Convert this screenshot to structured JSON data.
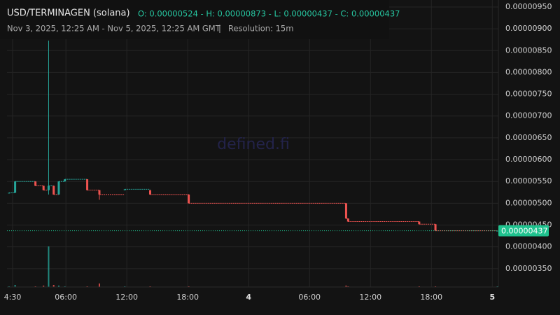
{
  "header": {
    "pair": "USD/TERMINAGEN (solana)",
    "ohlc": "O: 0.00000524 - H: 0.00000873 - L: 0.00000437 - C: 0.00000437",
    "range": "Nov 3, 2025, 12:25 AM - Nov 5, 2025, 12:25 AM GMT",
    "separator": "|",
    "resolution": "Resolution: 15m"
  },
  "watermark": "defined.fi",
  "chart_data": {
    "type": "candlestick",
    "up_color": "#26a69a",
    "down_color": "#ef5350",
    "grid": true,
    "x": [
      0.4,
      1.0,
      3.0,
      3.8,
      4.3,
      4.8,
      5.3,
      5.9,
      8.1,
      9.3,
      11.8,
      14.3,
      18.1,
      33.6,
      33.8,
      40.8,
      42.4,
      48.5
    ],
    "open": [
      5.24e-06,
      5.24e-06,
      5.5e-06,
      5.4e-06,
      5.3e-06,
      5.4e-06,
      5.2e-06,
      5.5e-06,
      5.55e-06,
      5.3e-06,
      5.3e-06,
      5.3e-06,
      5.2e-06,
      5e-06,
      4.65e-06,
      4.58e-06,
      4.52e-06,
      4.37e-06
    ],
    "high": [
      5.24e-06,
      5.5e-06,
      5.5e-06,
      5.4e-06,
      8.73e-06,
      5.4e-06,
      5.5e-06,
      5.55e-06,
      5.55e-06,
      5.3e-06,
      5.32e-06,
      5.3e-06,
      5.2e-06,
      5e-06,
      4.65e-06,
      4.58e-06,
      4.52e-06,
      4.37e-06
    ],
    "low": [
      5.24e-06,
      5.24e-06,
      5.4e-06,
      5.3e-06,
      5.2e-06,
      5.2e-06,
      5.2e-06,
      5.5e-06,
      5.3e-06,
      5.08e-06,
      5.3e-06,
      5.2e-06,
      5e-06,
      4.65e-06,
      4.58e-06,
      4.52e-06,
      4.37e-06,
      4.37e-06
    ],
    "close": [
      5.24e-06,
      5.5e-06,
      5.4e-06,
      5.3e-06,
      5.4e-06,
      5.2e-06,
      5.5e-06,
      5.55e-06,
      5.3e-06,
      5.2e-06,
      5.32e-06,
      5.2e-06,
      5e-06,
      4.65e-06,
      4.58e-06,
      4.52e-06,
      4.37e-06,
      4.37e-06
    ],
    "volume": [
      1,
      3,
      1,
      2,
      58,
      3,
      2,
      1,
      1,
      5,
      1,
      1,
      1,
      2,
      1,
      1,
      1,
      1
    ],
    "vlim": [
      0,
      100
    ],
    "xlim": [
      0.2,
      48.6
    ],
    "xticks": [
      {
        "value": 0.75,
        "label": "4:30"
      },
      {
        "value": 6,
        "label": "06:00"
      },
      {
        "value": 12,
        "label": "12:00"
      },
      {
        "value": 18,
        "label": "18:00"
      },
      {
        "value": 24,
        "label": "4"
      },
      {
        "value": 30,
        "label": "06:00"
      },
      {
        "value": 36,
        "label": "12:00"
      },
      {
        "value": 42,
        "label": "18:00"
      },
      {
        "value": 48,
        "label": "5"
      }
    ],
    "ylim": [
      3.08e-06,
      9.66e-06
    ],
    "yticks": [
      {
        "value": 3.5e-06,
        "label": "0.00000350"
      },
      {
        "value": 4e-06,
        "label": "0.00000400"
      },
      {
        "value": 4.5e-06,
        "label": "0.00000450"
      },
      {
        "value": 5e-06,
        "label": "0.00000500"
      },
      {
        "value": 5.5e-06,
        "label": "0.00000550"
      },
      {
        "value": 6e-06,
        "label": "0.00000600"
      },
      {
        "value": 6.5e-06,
        "label": "0.00000650"
      },
      {
        "value": 7e-06,
        "label": "0.00000700"
      },
      {
        "value": 7.5e-06,
        "label": "0.00000750"
      },
      {
        "value": 8e-06,
        "label": "0.00000800"
      },
      {
        "value": 8.5e-06,
        "label": "0.00000850"
      },
      {
        "value": 9e-06,
        "label": "0.00000900"
      },
      {
        "value": 9.5e-06,
        "label": "0.00000950"
      }
    ],
    "last_price": {
      "value": 4.37e-06,
      "label": "0.00000437",
      "color": "#1fc28e"
    }
  }
}
